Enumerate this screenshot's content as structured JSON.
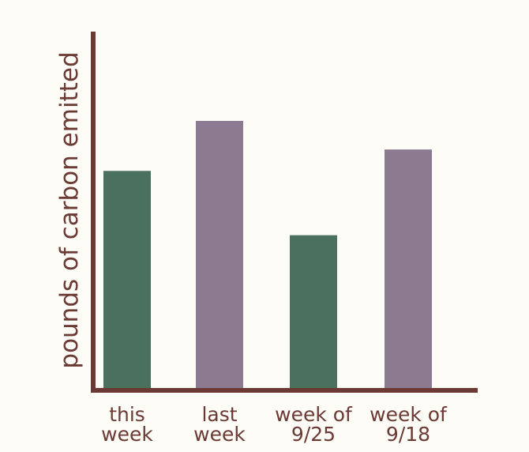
{
  "chart_data": {
    "type": "bar",
    "title": "",
    "xlabel": "",
    "ylabel": "pounds of carbon emitted",
    "categories": [
      [
        "this",
        "week"
      ],
      [
        "last",
        "week"
      ],
      [
        "week of",
        "9/25"
      ],
      [
        "week of",
        "9/18"
      ]
    ],
    "values": [
      61,
      75,
      43,
      67
    ],
    "ylim": [
      0,
      100
    ],
    "grid": false,
    "legend": "none",
    "bar_colors": [
      "#4a705e",
      "#8c7a91",
      "#4a705e",
      "#8c7a91"
    ],
    "axis_color": "#6b3a34",
    "text_color": "#6b3a34",
    "background": "#fdfcf6"
  }
}
